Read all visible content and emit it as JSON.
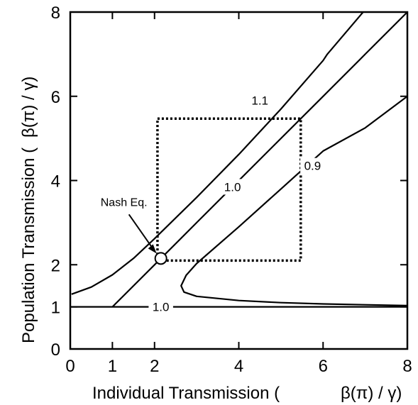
{
  "chart_data": {
    "type": "line",
    "xlabel": "Individual Transmission (",
    "xlabel_unit": "β(π) / γ)",
    "ylabel": "Population Transmission (",
    "ylabel_unit": "β(π) / γ)",
    "xlim": [
      0,
      8
    ],
    "ylim": [
      0,
      8
    ],
    "x_ticks": [
      "0",
      "1",
      "2",
      "4",
      "6",
      "8"
    ],
    "y_ticks": [
      "0",
      "1",
      "2",
      "4",
      "6",
      "8"
    ],
    "grid": false,
    "series": [
      {
        "label": "1.0",
        "points": [
          [
            0,
            1
          ],
          [
            8,
            1
          ]
        ],
        "label_at": [
          2.15,
          1
        ]
      },
      {
        "label": "1.0",
        "points": [
          [
            1,
            1
          ],
          [
            2,
            2
          ],
          [
            3,
            3
          ],
          [
            4,
            4
          ],
          [
            5,
            5
          ],
          [
            6,
            6
          ],
          [
            7,
            7
          ],
          [
            8,
            8
          ]
        ],
        "label_at": [
          3.85,
          3.85
        ]
      },
      {
        "label": "1.1",
        "points": [
          [
            0.03,
            1.3
          ],
          [
            0.5,
            1.47
          ],
          [
            1,
            1.76
          ],
          [
            1.5,
            2.15
          ],
          [
            2,
            2.62
          ],
          [
            3,
            3.6
          ],
          [
            4,
            4.62
          ],
          [
            5,
            5.7
          ],
          [
            6,
            6.85
          ],
          [
            6.1,
            7
          ],
          [
            6.95,
            8
          ]
        ],
        "label_at": [
          4.5,
          5.9
        ]
      },
      {
        "label": "0.9",
        "points": [
          [
            8,
            1.03
          ],
          [
            7,
            1.05
          ],
          [
            6,
            1.07
          ],
          [
            5,
            1.1
          ],
          [
            4,
            1.15
          ],
          [
            3,
            1.25
          ],
          [
            2.7,
            1.35
          ],
          [
            2.63,
            1.5
          ],
          [
            2.75,
            1.75
          ],
          [
            3,
            2.03
          ],
          [
            4,
            2.9
          ],
          [
            5,
            3.8
          ],
          [
            6,
            4.7
          ],
          [
            7,
            5.25
          ],
          [
            8,
            6
          ]
        ],
        "label_at": [
          5.75,
          4.35
        ]
      }
    ],
    "nash_box": {
      "x0": 2.07,
      "x1": 5.47,
      "y0": 2.1,
      "y1": 5.47
    },
    "nash_equilibrium": {
      "label": "Nash Eq.",
      "point": [
        2.15,
        2.15
      ]
    }
  }
}
